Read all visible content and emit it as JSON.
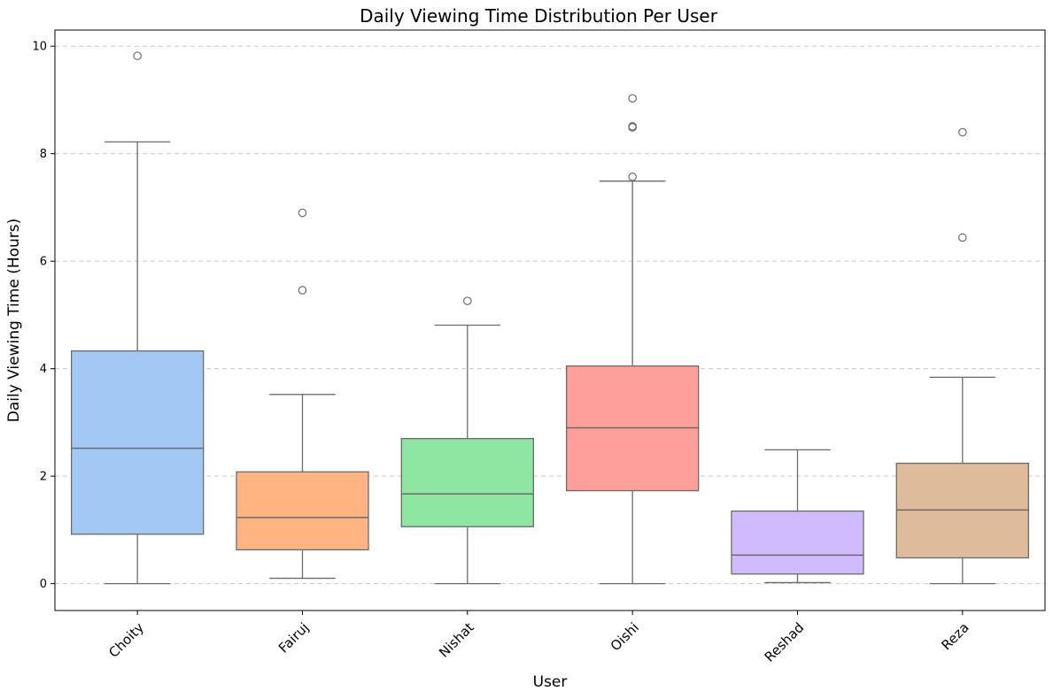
{
  "chart_data": {
    "type": "box",
    "title": "Daily Viewing Time Distribution Per User",
    "xlabel": "User",
    "ylabel": "Daily Viewing Time (Hours)",
    "ylim": [
      -0.5,
      10.3
    ],
    "yticks": [
      0,
      2,
      4,
      6,
      8,
      10
    ],
    "grid": "y-dashed",
    "categories": [
      "Choity",
      "Fairuj",
      "Nishat",
      "Oishi",
      "Reshad",
      "Reza"
    ],
    "boxes": [
      {
        "name": "Choity",
        "color": "#a1c9f4",
        "whisker_low": 0.0,
        "q1": 0.92,
        "median": 2.52,
        "q3": 4.33,
        "whisker_high": 8.22,
        "outliers": [
          9.82
        ]
      },
      {
        "name": "Fairuj",
        "color": "#ffb482",
        "whisker_low": 0.1,
        "q1": 0.63,
        "median": 1.23,
        "q3": 2.08,
        "whisker_high": 3.52,
        "outliers": [
          5.46,
          6.9
        ]
      },
      {
        "name": "Nishat",
        "color": "#8de5a1",
        "whisker_low": 0.0,
        "q1": 1.06,
        "median": 1.67,
        "q3": 2.7,
        "whisker_high": 4.81,
        "outliers": [
          5.26
        ]
      },
      {
        "name": "Oishi",
        "color": "#ff9f9b",
        "whisker_low": 0.0,
        "q1": 1.73,
        "median": 2.9,
        "q3": 4.05,
        "whisker_high": 7.49,
        "outliers": [
          7.57,
          8.49,
          8.51,
          9.03
        ]
      },
      {
        "name": "Reshad",
        "color": "#d0bbff",
        "whisker_low": 0.02,
        "q1": 0.18,
        "median": 0.53,
        "q3": 1.35,
        "whisker_high": 2.49,
        "outliers": []
      },
      {
        "name": "Reza",
        "color": "#debb9b",
        "whisker_low": 0.0,
        "q1": 0.48,
        "median": 1.37,
        "q3": 2.24,
        "whisker_high": 3.84,
        "outliers": [
          6.44,
          8.4
        ]
      }
    ]
  }
}
